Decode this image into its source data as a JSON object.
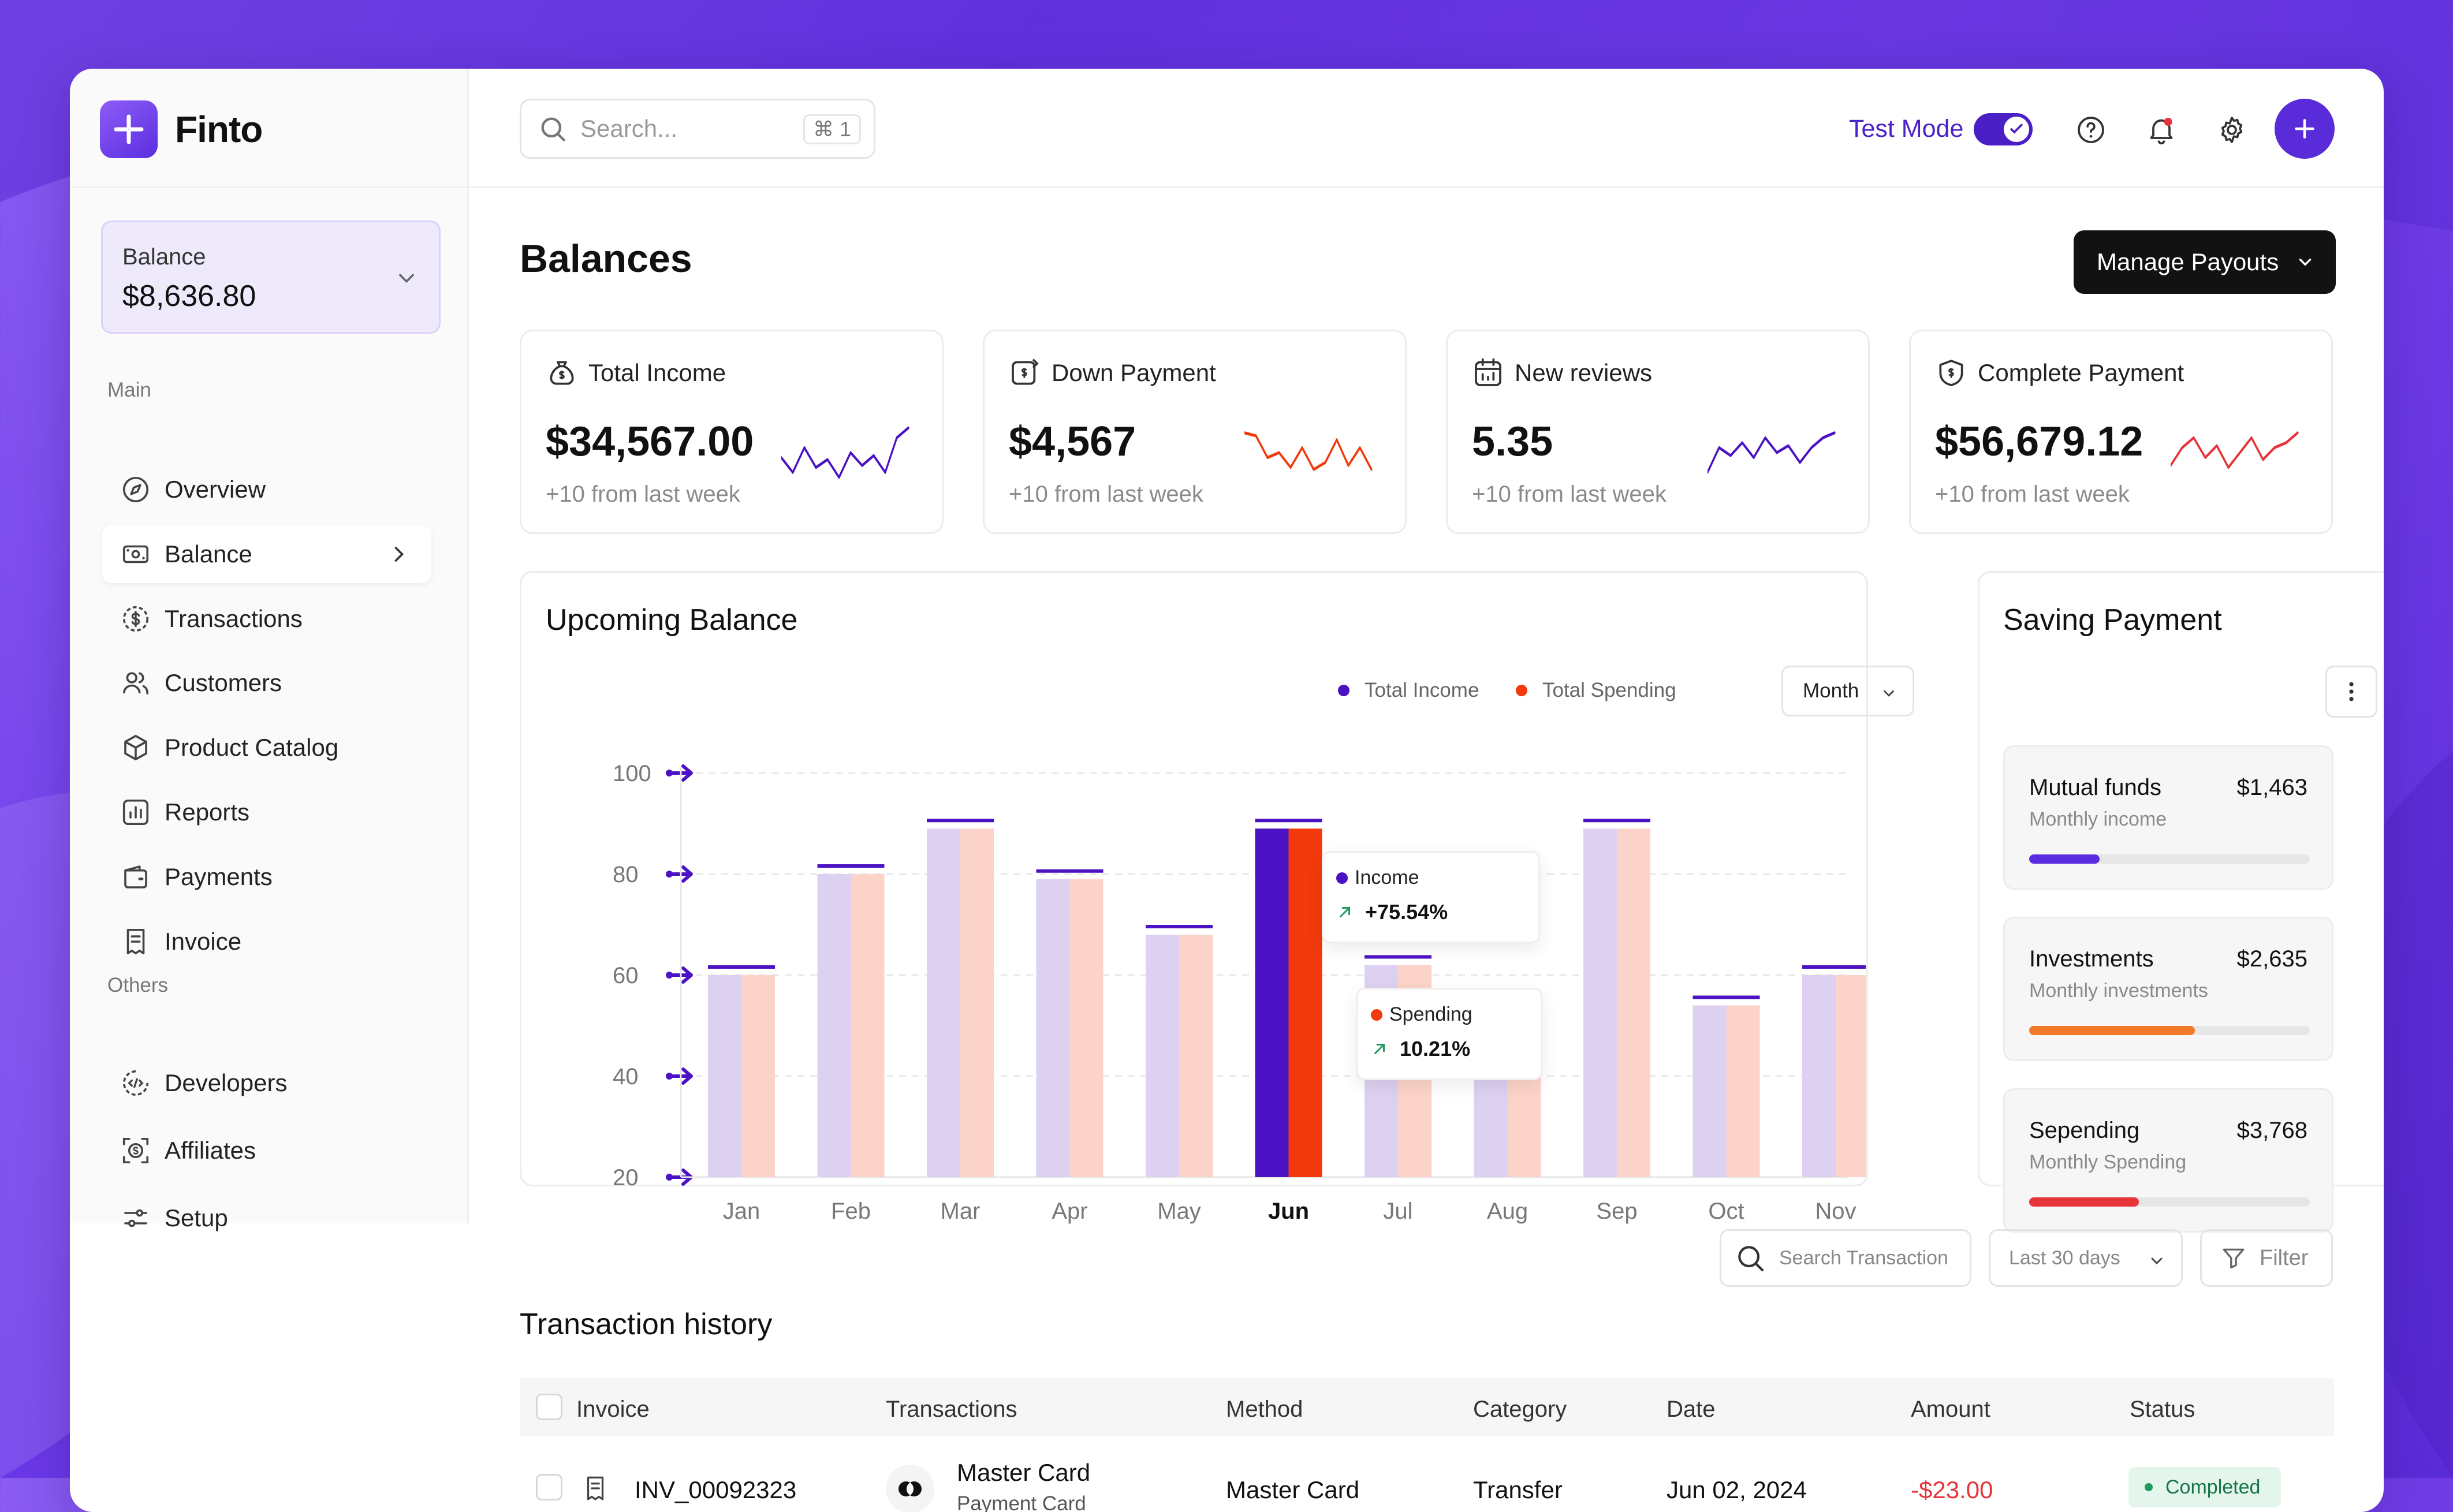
{
  "app": {
    "name": "Finto"
  },
  "colors": {
    "accent": "#5a2bd9",
    "income": "#4b12c4",
    "spending": "#f23a0c",
    "income_light": "#dcd1f0",
    "spending_light": "#fcd3c8",
    "positive": "#1f9a5f",
    "negative": "#e5353a"
  },
  "sidebar": {
    "balance": {
      "label": "Balance",
      "value": "$8,636.80"
    },
    "sections": {
      "main": "Main",
      "others": "Others"
    },
    "items": [
      {
        "label": "Overview",
        "icon": "compass-icon"
      },
      {
        "label": "Balance",
        "icon": "wallet-card-icon",
        "active": true
      },
      {
        "label": "Transactions",
        "icon": "dollar-circle-icon"
      },
      {
        "label": "Customers",
        "icon": "users-icon"
      },
      {
        "label": "Product Catalog",
        "icon": "box-icon"
      },
      {
        "label": "Reports",
        "icon": "bar-report-icon"
      },
      {
        "label": "Payments",
        "icon": "wallet-icon"
      },
      {
        "label": "Invoice",
        "icon": "receipt-icon"
      },
      {
        "label": "Developers",
        "icon": "code-icon"
      },
      {
        "label": "Affiliates",
        "icon": "affiliate-icon"
      },
      {
        "label": "Setup",
        "icon": "sliders-icon"
      }
    ]
  },
  "topbar": {
    "search_placeholder": "Search...",
    "search_shortcut": "⌘ 1",
    "test_mode_label": "Test Mode",
    "test_mode_on": true
  },
  "page": {
    "title": "Balances",
    "manage_button": "Manage Payouts"
  },
  "stats": [
    {
      "title": "Total Income",
      "value": "$34,567.00",
      "sub": "+10 from last week",
      "icon": "money-bag-icon"
    },
    {
      "title": "Down Payment",
      "value": "$4,567",
      "sub": "+10 from last week",
      "icon": "payment-icon"
    },
    {
      "title": "New reviews",
      "value": "5.35",
      "sub": "+10 from last week",
      "icon": "calendar-icon"
    },
    {
      "title": "Complete Payment",
      "value": "$56,679.12",
      "sub": "+10 from last week",
      "icon": "shield-dollar-icon"
    }
  ],
  "upcoming": {
    "title": "Upcoming Balance",
    "legend": [
      "Total Income",
      "Total Spending"
    ],
    "period": "Month",
    "tooltip_income": {
      "label": "Income",
      "value": "+75.54%"
    },
    "tooltip_spending": {
      "label": "Spending",
      "value": "10.21%"
    }
  },
  "chart_data": {
    "type": "bar",
    "categories": [
      "Jan",
      "Feb",
      "Mar",
      "Apr",
      "May",
      "Jun",
      "Jul",
      "Aug",
      "Sep",
      "Oct",
      "Nov"
    ],
    "series": [
      {
        "name": "Total Income",
        "values": [
          60,
          80,
          89,
          79,
          68,
          89,
          62,
          53,
          89,
          54,
          60
        ]
      },
      {
        "name": "Total Spending",
        "values": [
          60,
          80,
          89,
          79,
          68,
          89,
          62,
          53,
          89,
          54,
          60
        ]
      }
    ],
    "yticks": [
      100,
      80,
      60,
      40,
      20
    ],
    "ylim": [
      20,
      100
    ],
    "highlight": "Jun",
    "grid": true
  },
  "saving": {
    "title": "Saving Payment",
    "items": [
      {
        "name": "Mutual funds",
        "sub": "Monthly income",
        "amount": "$1,463",
        "progress": 0.25,
        "color": "#5b2be0"
      },
      {
        "name": "Investments",
        "sub": "Monthly investments",
        "amount": "$2,635",
        "progress": 0.59,
        "color": "#f47a2a"
      },
      {
        "name": "Sepending",
        "sub": "Monthly Spending",
        "amount": "$3,768",
        "progress": 0.39,
        "color": "#e5353a"
      }
    ]
  },
  "transactions": {
    "title": "Transaction history",
    "search_placeholder": "Search Transaction",
    "range": "Last 30 days",
    "filter": "Filter",
    "columns": [
      "Invoice",
      "Transactions",
      "Method",
      "Category",
      "Date",
      "Amount",
      "Status"
    ],
    "rows": [
      {
        "invoice": "INV_00092323",
        "name": "Master Card",
        "sub": "Payment Card",
        "method": "Master Card",
        "category": "Transfer",
        "date": "Jun 02, 2024",
        "amount": "-$23.00",
        "status": "Completed"
      }
    ]
  }
}
